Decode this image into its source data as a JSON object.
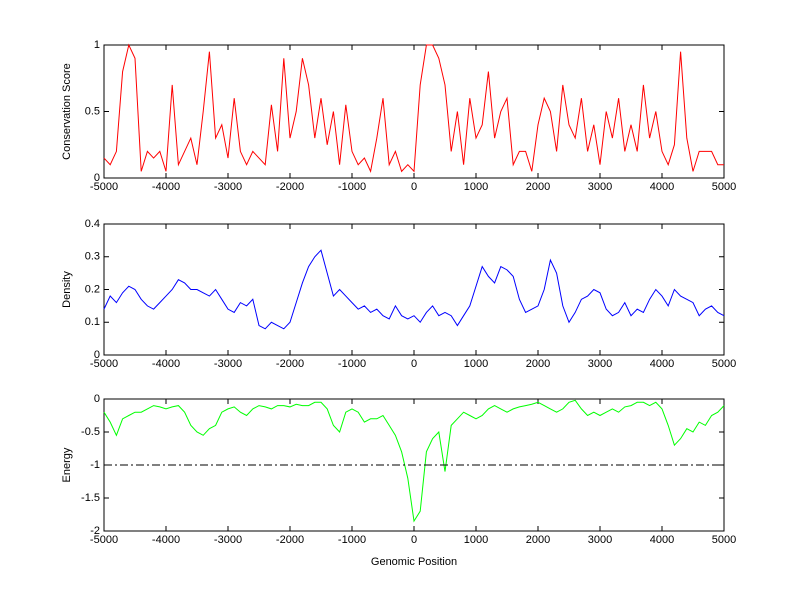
{
  "chart_data": [
    {
      "type": "line",
      "ylabel": "Conservation Score",
      "color": "#ff0000",
      "x": [
        -5000,
        -4900,
        -4800,
        -4700,
        -4600,
        -4500,
        -4400,
        -4300,
        -4200,
        -4100,
        -4000,
        -3900,
        -3800,
        -3700,
        -3600,
        -3500,
        -3400,
        -3300,
        -3200,
        -3100,
        -3000,
        -2900,
        -2800,
        -2700,
        -2600,
        -2500,
        -2400,
        -2300,
        -2200,
        -2100,
        -2000,
        -1900,
        -1800,
        -1700,
        -1600,
        -1500,
        -1400,
        -1300,
        -1200,
        -1100,
        -1000,
        -900,
        -800,
        -700,
        -600,
        -500,
        -400,
        -300,
        -200,
        -100,
        0,
        100,
        200,
        300,
        400,
        500,
        600,
        700,
        800,
        900,
        1000,
        1100,
        1200,
        1300,
        1400,
        1500,
        1600,
        1700,
        1800,
        1900,
        2000,
        2100,
        2200,
        2300,
        2400,
        2500,
        2600,
        2700,
        2800,
        2900,
        3000,
        3100,
        3200,
        3300,
        3400,
        3500,
        3600,
        3700,
        3800,
        3900,
        4000,
        4100,
        4200,
        4300,
        4400,
        4500,
        4600,
        4700,
        4800,
        4900,
        5000
      ],
      "values": [
        0.15,
        0.1,
        0.2,
        0.8,
        1.0,
        0.9,
        0.05,
        0.2,
        0.15,
        0.2,
        0.05,
        0.7,
        0.1,
        0.2,
        0.3,
        0.1,
        0.5,
        0.95,
        0.3,
        0.4,
        0.15,
        0.6,
        0.2,
        0.1,
        0.2,
        0.15,
        0.1,
        0.55,
        0.2,
        0.9,
        0.3,
        0.5,
        0.9,
        0.7,
        0.3,
        0.6,
        0.25,
        0.5,
        0.1,
        0.55,
        0.2,
        0.1,
        0.15,
        0.05,
        0.3,
        0.6,
        0.1,
        0.2,
        0.05,
        0.1,
        0.05,
        0.7,
        1.0,
        1.0,
        0.9,
        0.7,
        0.2,
        0.5,
        0.1,
        0.6,
        0.3,
        0.4,
        0.8,
        0.3,
        0.5,
        0.6,
        0.1,
        0.2,
        0.2,
        0.05,
        0.4,
        0.6,
        0.5,
        0.2,
        0.7,
        0.4,
        0.3,
        0.6,
        0.2,
        0.4,
        0.1,
        0.5,
        0.3,
        0.6,
        0.2,
        0.4,
        0.2,
        0.7,
        0.3,
        0.5,
        0.2,
        0.1,
        0.25,
        0.95,
        0.3,
        0.05,
        0.2,
        0.2,
        0.2,
        0.1,
        0.1
      ],
      "xlim": [
        -5000,
        5000
      ],
      "ylim": [
        0,
        1
      ],
      "xticks": [
        -5000,
        -4000,
        -3000,
        -2000,
        -1000,
        0,
        1000,
        2000,
        3000,
        4000,
        5000
      ],
      "yticks": [
        0,
        0.5,
        1
      ]
    },
    {
      "type": "line",
      "ylabel": "Density",
      "color": "#0000ff",
      "x": [
        -5000,
        -4900,
        -4800,
        -4700,
        -4600,
        -4500,
        -4400,
        -4300,
        -4200,
        -4100,
        -4000,
        -3900,
        -3800,
        -3700,
        -3600,
        -3500,
        -3400,
        -3300,
        -3200,
        -3100,
        -3000,
        -2900,
        -2800,
        -2700,
        -2600,
        -2500,
        -2400,
        -2300,
        -2200,
        -2100,
        -2000,
        -1900,
        -1800,
        -1700,
        -1600,
        -1500,
        -1400,
        -1300,
        -1200,
        -1100,
        -1000,
        -900,
        -800,
        -700,
        -600,
        -500,
        -400,
        -300,
        -200,
        -100,
        0,
        100,
        200,
        300,
        400,
        500,
        600,
        700,
        800,
        900,
        1000,
        1100,
        1200,
        1300,
        1400,
        1500,
        1600,
        1700,
        1800,
        1900,
        2000,
        2100,
        2200,
        2300,
        2400,
        2500,
        2600,
        2700,
        2800,
        2900,
        3000,
        3100,
        3200,
        3300,
        3400,
        3500,
        3600,
        3700,
        3800,
        3900,
        4000,
        4100,
        4200,
        4300,
        4400,
        4500,
        4600,
        4700,
        4800,
        4900,
        5000
      ],
      "values": [
        0.14,
        0.18,
        0.16,
        0.19,
        0.21,
        0.2,
        0.17,
        0.15,
        0.14,
        0.16,
        0.18,
        0.2,
        0.23,
        0.22,
        0.2,
        0.2,
        0.19,
        0.18,
        0.2,
        0.17,
        0.14,
        0.13,
        0.16,
        0.15,
        0.17,
        0.09,
        0.08,
        0.1,
        0.09,
        0.08,
        0.1,
        0.16,
        0.22,
        0.27,
        0.3,
        0.32,
        0.25,
        0.18,
        0.2,
        0.18,
        0.16,
        0.14,
        0.15,
        0.13,
        0.14,
        0.12,
        0.11,
        0.15,
        0.12,
        0.11,
        0.12,
        0.1,
        0.13,
        0.15,
        0.12,
        0.13,
        0.12,
        0.09,
        0.12,
        0.15,
        0.21,
        0.27,
        0.24,
        0.22,
        0.27,
        0.26,
        0.24,
        0.17,
        0.13,
        0.14,
        0.15,
        0.2,
        0.29,
        0.25,
        0.15,
        0.1,
        0.13,
        0.17,
        0.18,
        0.2,
        0.19,
        0.14,
        0.12,
        0.13,
        0.16,
        0.12,
        0.14,
        0.13,
        0.17,
        0.2,
        0.18,
        0.15,
        0.2,
        0.18,
        0.17,
        0.16,
        0.12,
        0.14,
        0.15,
        0.13,
        0.12
      ],
      "xlim": [
        -5000,
        5000
      ],
      "ylim": [
        0,
        0.4
      ],
      "xticks": [
        -5000,
        -4000,
        -3000,
        -2000,
        -1000,
        0,
        1000,
        2000,
        3000,
        4000,
        5000
      ],
      "yticks": [
        0,
        0.1,
        0.2,
        0.3,
        0.4
      ]
    },
    {
      "type": "line",
      "ylabel": "Energy",
      "xlabel": "Genomic Position",
      "color": "#00ff00",
      "hline": -1,
      "x": [
        -5000,
        -4900,
        -4800,
        -4700,
        -4600,
        -4500,
        -4400,
        -4300,
        -4200,
        -4100,
        -4000,
        -3900,
        -3800,
        -3700,
        -3600,
        -3500,
        -3400,
        -3300,
        -3200,
        -3100,
        -3000,
        -2900,
        -2800,
        -2700,
        -2600,
        -2500,
        -2400,
        -2300,
        -2200,
        -2100,
        -2000,
        -1900,
        -1800,
        -1700,
        -1600,
        -1500,
        -1400,
        -1300,
        -1200,
        -1100,
        -1000,
        -900,
        -800,
        -700,
        -600,
        -500,
        -400,
        -300,
        -200,
        -100,
        0,
        100,
        200,
        300,
        400,
        500,
        600,
        700,
        800,
        900,
        1000,
        1100,
        1200,
        1300,
        1400,
        1500,
        1600,
        1700,
        1800,
        1900,
        2000,
        2100,
        2200,
        2300,
        2400,
        2500,
        2600,
        2700,
        2800,
        2900,
        3000,
        3100,
        3200,
        3300,
        3400,
        3500,
        3600,
        3700,
        3800,
        3900,
        4000,
        4100,
        4200,
        4300,
        4400,
        4500,
        4600,
        4700,
        4800,
        4900,
        5000
      ],
      "values": [
        -0.2,
        -0.35,
        -0.55,
        -0.3,
        -0.25,
        -0.2,
        -0.2,
        -0.15,
        -0.1,
        -0.12,
        -0.15,
        -0.12,
        -0.1,
        -0.2,
        -0.4,
        -0.5,
        -0.55,
        -0.45,
        -0.4,
        -0.2,
        -0.15,
        -0.12,
        -0.2,
        -0.25,
        -0.15,
        -0.1,
        -0.12,
        -0.15,
        -0.1,
        -0.1,
        -0.12,
        -0.08,
        -0.1,
        -0.1,
        -0.05,
        -0.05,
        -0.15,
        -0.4,
        -0.5,
        -0.2,
        -0.15,
        -0.2,
        -0.35,
        -0.3,
        -0.3,
        -0.25,
        -0.4,
        -0.55,
        -0.8,
        -1.2,
        -1.85,
        -1.7,
        -0.8,
        -0.6,
        -0.5,
        -1.1,
        -0.4,
        -0.3,
        -0.2,
        -0.25,
        -0.3,
        -0.25,
        -0.15,
        -0.1,
        -0.15,
        -0.2,
        -0.15,
        -0.12,
        -0.1,
        -0.08,
        -0.05,
        -0.1,
        -0.15,
        -0.2,
        -0.15,
        -0.05,
        -0.02,
        -0.15,
        -0.25,
        -0.2,
        -0.25,
        -0.2,
        -0.15,
        -0.2,
        -0.12,
        -0.1,
        -0.05,
        -0.05,
        -0.1,
        -0.05,
        -0.15,
        -0.4,
        -0.7,
        -0.6,
        -0.45,
        -0.5,
        -0.35,
        -0.4,
        -0.25,
        -0.2,
        -0.1
      ],
      "xlim": [
        -5000,
        5000
      ],
      "ylim": [
        -2,
        0
      ],
      "xticks": [
        -5000,
        -4000,
        -3000,
        -2000,
        -1000,
        0,
        1000,
        2000,
        3000,
        4000,
        5000
      ],
      "yticks": [
        -2,
        -1.5,
        -1,
        -0.5,
        0
      ]
    }
  ]
}
